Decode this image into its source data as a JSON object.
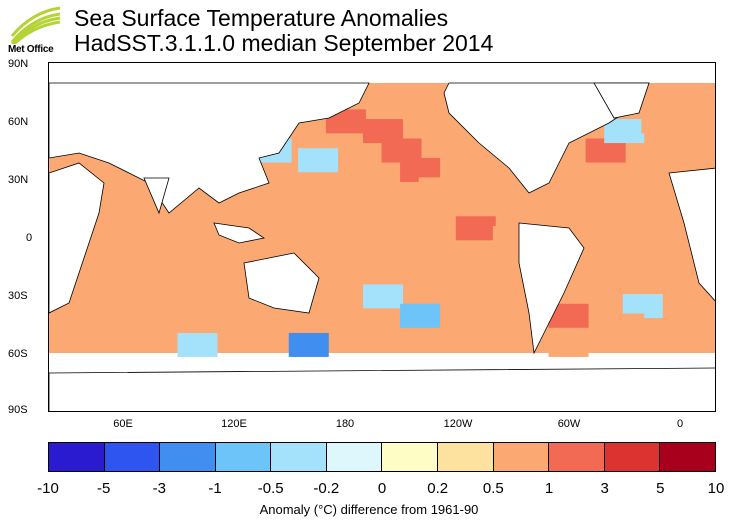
{
  "header": {
    "logo_text": "Met Office",
    "title": "Sea Surface Temperature Anomalies",
    "subtitle": "HadSST.3.1.1.0 median September 2014"
  },
  "map": {
    "lat_labels": [
      "90N",
      "60N",
      "30N",
      "0",
      "30S",
      "60S",
      "90S"
    ],
    "lon_labels": [
      "60E",
      "120E",
      "180",
      "120W",
      "60W",
      "0"
    ]
  },
  "legend": {
    "tick_labels": [
      "-10",
      "-5",
      "-3",
      "-1",
      "-0.5",
      "-0.2",
      "0",
      "0.2",
      "0.5",
      "1",
      "3",
      "5",
      "10"
    ],
    "colors": [
      "#2a1ad0",
      "#2e55f0",
      "#3f8ef0",
      "#6cc4f8",
      "#a4e2fb",
      "#def7fc",
      "#fefdc6",
      "#fde19e",
      "#fba872",
      "#f26a54",
      "#dc3230",
      "#a8001c"
    ],
    "caption": "Anomaly (°C) difference from 1961-90"
  },
  "chart_data": {
    "type": "heatmap",
    "title": "Sea Surface Temperature Anomalies",
    "subtitle": "HadSST.3.1.1.0 median September 2014",
    "xlabel": "",
    "ylabel": "",
    "colorbar_label": "Anomaly (°C) difference from 1961-90",
    "colorbar_bounds": [
      -10,
      -5,
      -3,
      -1,
      -0.5,
      -0.2,
      0,
      0.2,
      0.5,
      1,
      3,
      5,
      10
    ],
    "colorbar_colors": [
      "#2a1ad0",
      "#2e55f0",
      "#3f8ef0",
      "#6cc4f8",
      "#a4e2fb",
      "#def7fc",
      "#fefdc6",
      "#fde19e",
      "#fba872",
      "#f26a54",
      "#dc3230",
      "#a8001c"
    ],
    "lat_range": [
      -90,
      90
    ],
    "lon_range": [
      20,
      380
    ],
    "grid_cells": [
      {
        "lon": 30,
        "lat": 70,
        "v": 0.6
      },
      {
        "lon": 180,
        "lat": 60,
        "v": 1.5
      },
      {
        "lon": 200,
        "lat": 55,
        "v": 2.0
      },
      {
        "lon": 210,
        "lat": 45,
        "v": 1.5
      },
      {
        "lon": 220,
        "lat": 35,
        "v": 1.2
      },
      {
        "lon": 230,
        "lat": 25,
        "v": 0.8
      },
      {
        "lon": 160,
        "lat": 30,
        "v": 0.8
      },
      {
        "lon": 140,
        "lat": 45,
        "v": -0.3
      },
      {
        "lon": 165,
        "lat": 40,
        "v": -0.4
      },
      {
        "lon": 190,
        "lat": 10,
        "v": 0.6
      },
      {
        "lon": 250,
        "lat": 5,
        "v": 1.2
      },
      {
        "lon": 270,
        "lat": 0,
        "v": 0.7
      },
      {
        "lon": 300,
        "lat": 20,
        "v": 0.8
      },
      {
        "lon": 320,
        "lat": 45,
        "v": 1.2
      },
      {
        "lon": 330,
        "lat": 55,
        "v": -0.4
      },
      {
        "lon": 350,
        "lat": 60,
        "v": 0.8
      },
      {
        "lon": 70,
        "lat": -10,
        "v": 0.7
      },
      {
        "lon": 90,
        "lat": -30,
        "v": 0.6
      },
      {
        "lon": 200,
        "lat": -30,
        "v": -0.5
      },
      {
        "lon": 220,
        "lat": -40,
        "v": -0.8
      },
      {
        "lon": 160,
        "lat": -55,
        "v": -1.2
      },
      {
        "lon": 100,
        "lat": -55,
        "v": -0.4
      },
      {
        "lon": 300,
        "lat": -40,
        "v": 1.0
      },
      {
        "lon": 340,
        "lat": -35,
        "v": -0.4
      },
      {
        "lon": 330,
        "lat": -45,
        "v": 0.8
      },
      {
        "lon": 300,
        "lat": -55,
        "v": 0.7
      }
    ]
  }
}
